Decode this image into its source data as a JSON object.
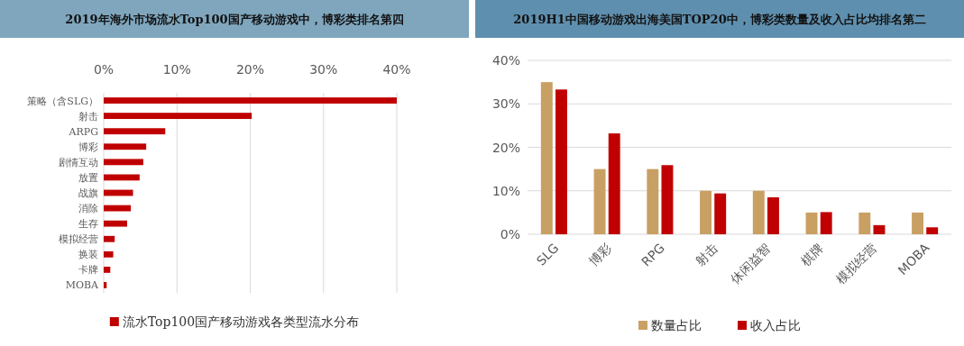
{
  "chart_data": [
    {
      "type": "bar",
      "orientation": "horizontal",
      "title": "2019年海外市场流水Top100国产移动游戏中，博彩类排名第四",
      "categories": [
        "策略（含SLG）",
        "射击",
        "ARPG",
        "博彩",
        "剧情互动",
        "放置",
        "战旗",
        "消除",
        "生存",
        "模拟经营",
        "换装",
        "卡牌",
        "MOBA"
      ],
      "series": [
        {
          "name": "流水Top100国产移动游戏各类型流水分布",
          "color": "#c00000",
          "values": [
            40.0,
            20.2,
            8.4,
            5.8,
            5.4,
            4.9,
            4.0,
            3.7,
            3.2,
            1.5,
            1.3,
            0.9,
            0.4
          ]
        }
      ],
      "xlim": [
        0,
        40
      ],
      "xticks": [
        {
          "value": 0,
          "label": "0%"
        },
        {
          "value": 10,
          "label": "10%"
        },
        {
          "value": 20,
          "label": "20%"
        },
        {
          "value": 30,
          "label": "30%"
        },
        {
          "value": 40,
          "label": "40%"
        }
      ],
      "grid": "x",
      "legend": "bottom"
    },
    {
      "type": "bar",
      "title": "2019H1中国移动游戏出海美国TOP20中，博彩类数量及收入占比均排名第二",
      "categories": [
        "SLG",
        "博彩",
        "RPG",
        "射击",
        "休闲益智",
        "棋牌",
        "模拟经营",
        "MOBA"
      ],
      "series": [
        {
          "name": "数量占比",
          "color": "#c9a063",
          "values": [
            35,
            15,
            15,
            10,
            10,
            5,
            5,
            5
          ]
        },
        {
          "name": "收入占比",
          "color": "#c00000",
          "values": [
            33.3,
            23.2,
            15.9,
            9.4,
            8.5,
            5.1,
            2.1,
            1.6
          ]
        }
      ],
      "ylim": [
        0,
        40
      ],
      "yticks": [
        {
          "value": 0,
          "label": "0%"
        },
        {
          "value": 10,
          "label": "10%"
        },
        {
          "value": 20,
          "label": "20%"
        },
        {
          "value": 30,
          "label": "30%"
        },
        {
          "value": 40,
          "label": "40%"
        }
      ],
      "grid": "y",
      "legend": "bottom"
    }
  ]
}
